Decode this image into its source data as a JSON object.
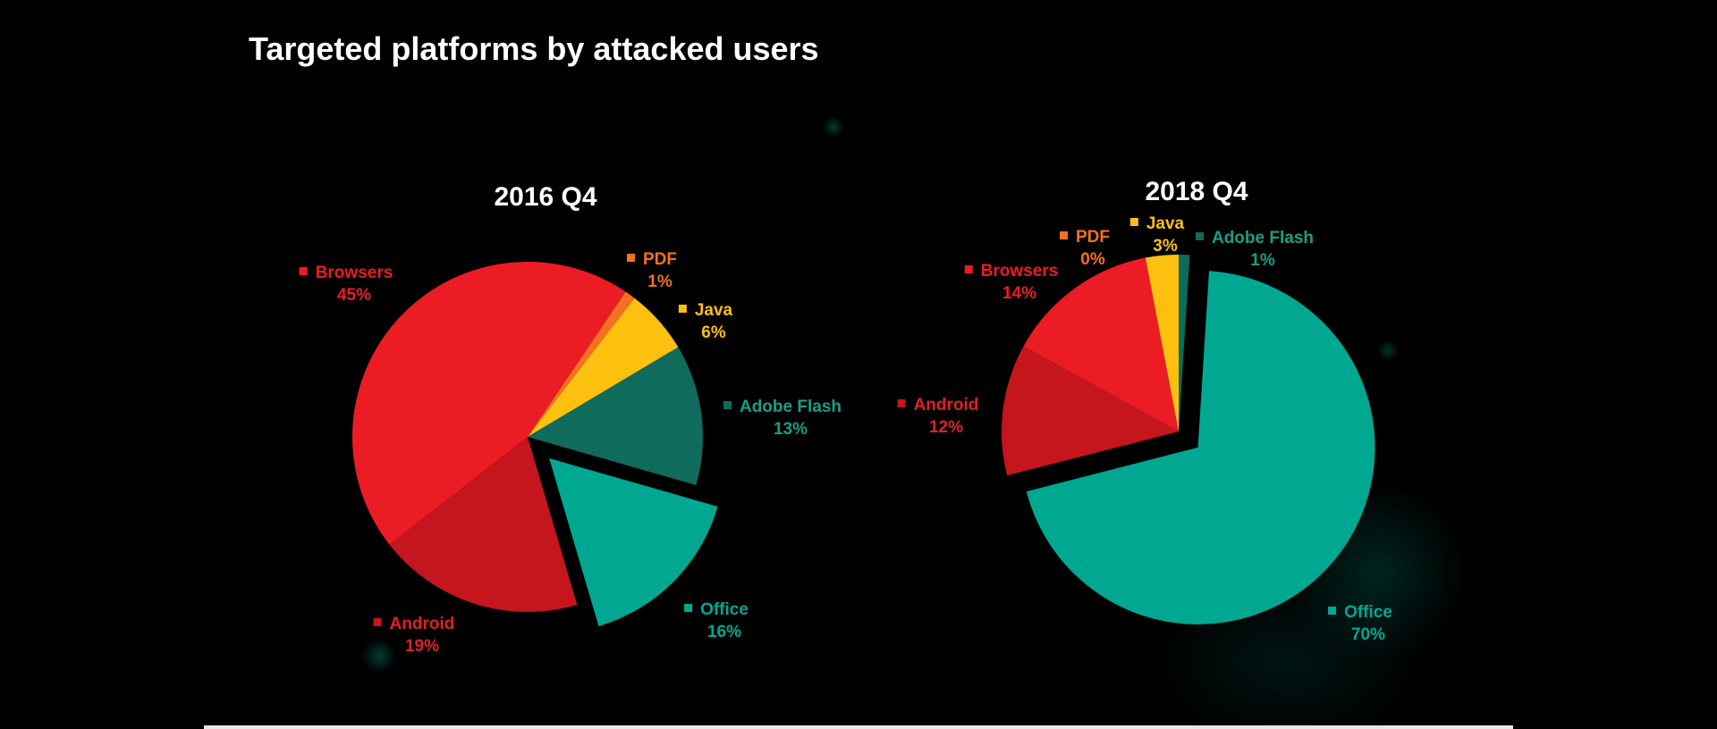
{
  "title": "Targeted platforms by attacked users",
  "chart_data": [
    {
      "type": "pie",
      "title": "2016 Q4",
      "slices": [
        {
          "label": "PDF",
          "value": 1,
          "value_label": "1%",
          "color": "#f4711f"
        },
        {
          "label": "Java",
          "value": 6,
          "value_label": "6%",
          "color": "#fcc10f"
        },
        {
          "label": "Adobe Flash",
          "value": 13,
          "value_label": "13%",
          "color": "#0f6b5b",
          "label_color": "#1a9e86"
        },
        {
          "label": "Office",
          "value": 16,
          "value_label": "16%",
          "color": "#00a892",
          "exploded": true
        },
        {
          "label": "Android",
          "value": 19,
          "value_label": "19%",
          "color": "#c4161c",
          "label_color": "#e02028"
        },
        {
          "label": "Browsers",
          "value": 45,
          "value_label": "45%",
          "color": "#ec1c24"
        }
      ]
    },
    {
      "type": "pie",
      "title": "2018 Q4",
      "slices": [
        {
          "label": "Adobe Flash",
          "value": 1,
          "value_label": "1%",
          "color": "#0f6b5b",
          "label_color": "#1a9e86"
        },
        {
          "label": "Office",
          "value": 70,
          "value_label": "70%",
          "color": "#00a892",
          "exploded": true
        },
        {
          "label": "Android",
          "value": 12,
          "value_label": "12%",
          "color": "#c4161c",
          "label_color": "#e02028"
        },
        {
          "label": "Browsers",
          "value": 14,
          "value_label": "14%",
          "color": "#ec1c24"
        },
        {
          "label": "PDF",
          "value": 0,
          "value_label": "0%",
          "color": "#f4711f"
        },
        {
          "label": "Java",
          "value": 3,
          "value_label": "3%",
          "color": "#fcc10f"
        }
      ]
    }
  ]
}
